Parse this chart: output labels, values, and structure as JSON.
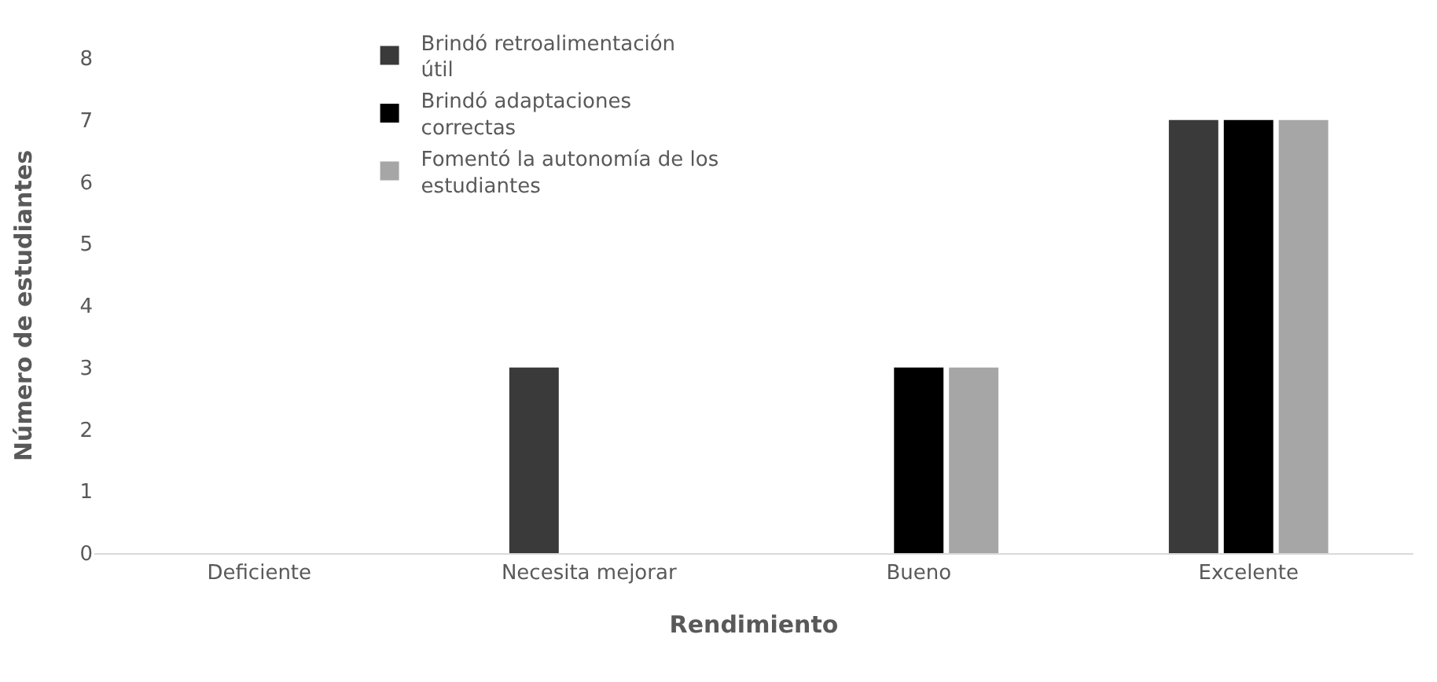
{
  "chart_data": {
    "type": "bar",
    "xlabel": "Rendimiento",
    "ylabel": "Número de estudiantes",
    "categories": [
      "Deficiente",
      "Necesita mejorar",
      "Bueno",
      "Excelente"
    ],
    "series": [
      {
        "name": "Brindó retroalimentación útil",
        "color": "#3a3a3a",
        "values": [
          0,
          3,
          0,
          7
        ]
      },
      {
        "name": "Brindó adaptaciones correctas",
        "color": "#000000",
        "values": [
          0,
          0,
          3,
          7
        ]
      },
      {
        "name": "Fomentó la autonomía de los estudiantes",
        "color": "#a6a6a6",
        "values": [
          0,
          0,
          3,
          7
        ]
      }
    ],
    "ylim": [
      0,
      8
    ],
    "yticks": [
      0,
      1,
      2,
      3,
      4,
      5,
      6,
      7,
      8
    ],
    "grid": false,
    "legend": "top left"
  }
}
